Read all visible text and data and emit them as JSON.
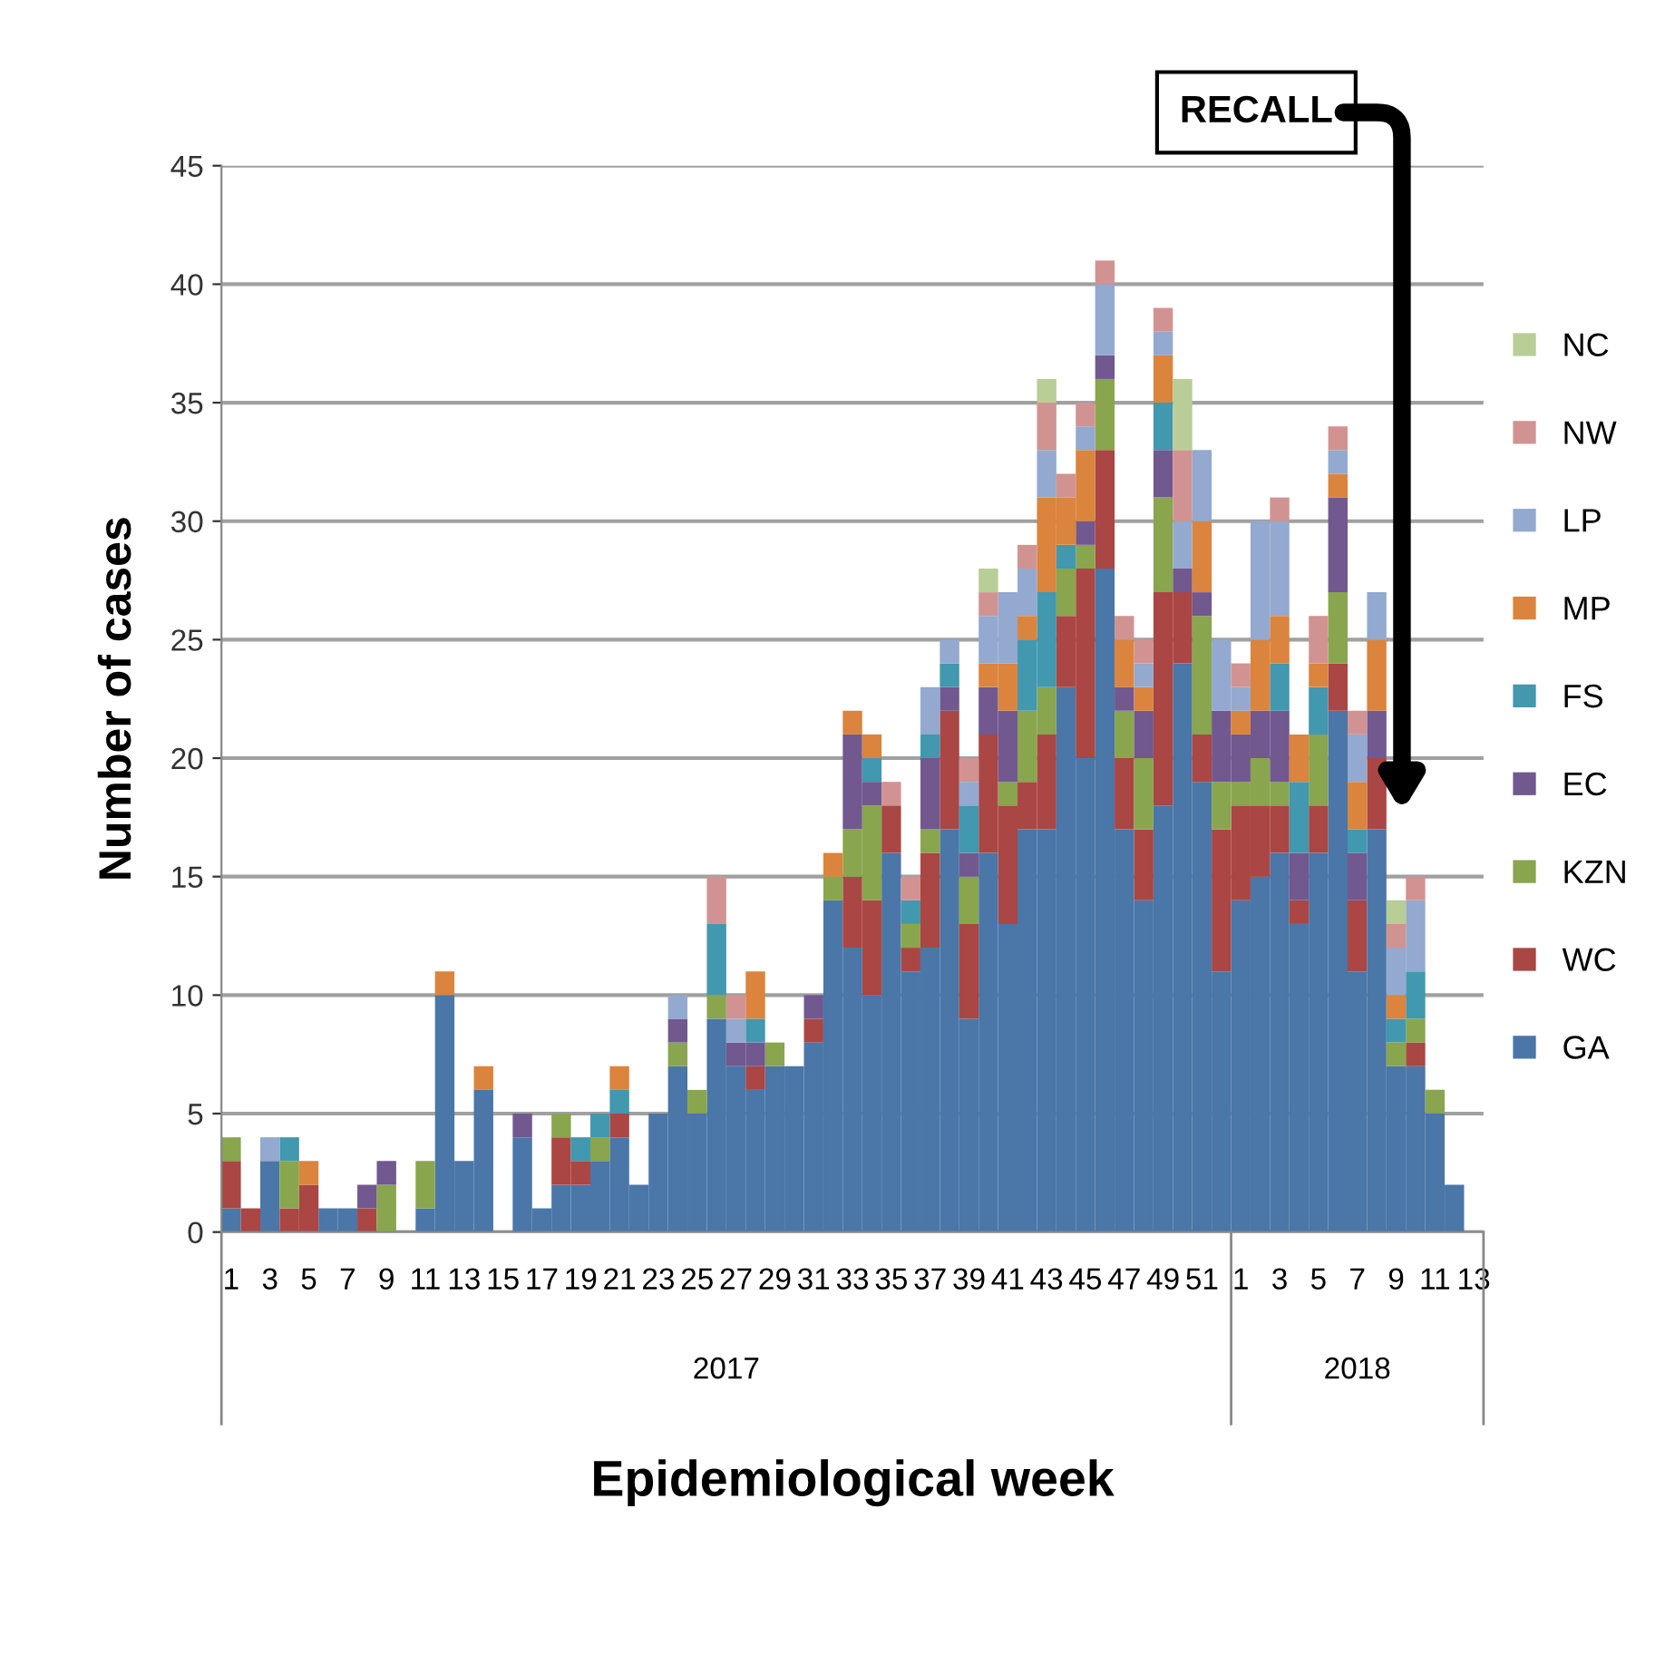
{
  "chart_data": {
    "type": "bar",
    "stacked": true,
    "xlabel": "Epidemiological week",
    "ylabel": "Number of cases",
    "categories": [
      "1",
      null,
      "3",
      null,
      "5",
      null,
      "7",
      null,
      "9",
      null,
      "11",
      null,
      "13",
      null,
      "15",
      null,
      "17",
      null,
      "19",
      null,
      "21",
      null,
      "23",
      null,
      "25",
      null,
      "27",
      null,
      "29",
      null,
      "31",
      null,
      "33",
      null,
      "35",
      null,
      "37",
      null,
      "39",
      null,
      "41",
      null,
      "43",
      null,
      "45",
      null,
      "47",
      null,
      "49",
      null,
      "51",
      null,
      "1",
      null,
      "3",
      null,
      "5",
      null,
      "7",
      null,
      "9",
      null,
      "11",
      null,
      "13"
    ],
    "annotations": [
      "RECALL",
      "2017",
      "2018"
    ],
    "ylim": [
      0,
      45
    ],
    "yticks": [
      0,
      5,
      10,
      15,
      20,
      25,
      30,
      35,
      40,
      45
    ],
    "grid": "y",
    "legend": "right",
    "series": [
      {
        "name": "GA",
        "color": "#4a76a8",
        "values": [
          1,
          0,
          3,
          0,
          0,
          1,
          1,
          0,
          0,
          0,
          1,
          10,
          3,
          6,
          0,
          4,
          1,
          2,
          2,
          3,
          4,
          2,
          5,
          7,
          5,
          9,
          7,
          6,
          7,
          7,
          8,
          14,
          12,
          10,
          16,
          11,
          12,
          17,
          9,
          16,
          13,
          17,
          17,
          23,
          20,
          28,
          17,
          14,
          18,
          24,
          19,
          11,
          14,
          15,
          16,
          13,
          16,
          22,
          11,
          17,
          7,
          7,
          5,
          2,
          0
        ]
      },
      {
        "name": "WC",
        "color": "#aa4643",
        "values": [
          2,
          1,
          0,
          1,
          2,
          0,
          0,
          1,
          0,
          0,
          0,
          0,
          0,
          0,
          0,
          0,
          0,
          2,
          1,
          0,
          1,
          0,
          0,
          0,
          0,
          0,
          0,
          1,
          0,
          0,
          1,
          0,
          3,
          4,
          2,
          1,
          4,
          5,
          4,
          5,
          5,
          2,
          4,
          3,
          8,
          5,
          3,
          3,
          9,
          3,
          2,
          6,
          4,
          3,
          2,
          1,
          2,
          2,
          3,
          3,
          0,
          1,
          0,
          0,
          0
        ]
      },
      {
        "name": "KZN",
        "color": "#89a54e",
        "values": [
          1,
          0,
          0,
          2,
          0,
          0,
          0,
          0,
          2,
          0,
          2,
          0,
          0,
          0,
          0,
          0,
          0,
          1,
          0,
          1,
          0,
          0,
          0,
          1,
          1,
          1,
          0,
          0,
          1,
          0,
          0,
          1,
          2,
          4,
          0,
          1,
          1,
          0,
          2,
          0,
          1,
          3,
          2,
          2,
          1,
          3,
          2,
          3,
          4,
          0,
          5,
          2,
          1,
          2,
          1,
          0,
          3,
          3,
          0,
          0,
          1,
          1,
          1,
          0,
          0
        ]
      },
      {
        "name": "EC",
        "color": "#71588f",
        "values": [
          0,
          0,
          0,
          0,
          0,
          0,
          0,
          1,
          1,
          0,
          0,
          0,
          0,
          0,
          0,
          1,
          0,
          0,
          0,
          0,
          0,
          0,
          0,
          1,
          0,
          0,
          1,
          1,
          0,
          0,
          1,
          0,
          4,
          1,
          0,
          0,
          3,
          1,
          1,
          2,
          3,
          0,
          0,
          0,
          1,
          1,
          1,
          2,
          2,
          1,
          1,
          3,
          2,
          2,
          3,
          2,
          0,
          4,
          2,
          2,
          0,
          0,
          0,
          0,
          0
        ]
      },
      {
        "name": "FS",
        "color": "#4198af",
        "values": [
          0,
          0,
          0,
          1,
          0,
          0,
          0,
          0,
          0,
          0,
          0,
          0,
          0,
          0,
          0,
          0,
          0,
          0,
          1,
          1,
          1,
          0,
          0,
          0,
          0,
          3,
          0,
          1,
          0,
          0,
          0,
          0,
          0,
          1,
          0,
          1,
          1,
          1,
          2,
          0,
          0,
          3,
          4,
          1,
          0,
          0,
          0,
          0,
          2,
          0,
          0,
          0,
          0,
          0,
          2,
          3,
          2,
          0,
          1,
          0,
          1,
          2,
          0,
          0,
          0
        ]
      },
      {
        "name": "MP",
        "color": "#db843d",
        "values": [
          0,
          0,
          0,
          0,
          1,
          0,
          0,
          0,
          0,
          0,
          0,
          1,
          0,
          1,
          0,
          0,
          0,
          0,
          0,
          0,
          1,
          0,
          0,
          0,
          0,
          0,
          0,
          2,
          0,
          0,
          0,
          1,
          1,
          1,
          0,
          0,
          0,
          0,
          0,
          1,
          2,
          1,
          4,
          2,
          3,
          0,
          2,
          1,
          2,
          0,
          3,
          0,
          1,
          3,
          2,
          2,
          1,
          1,
          2,
          3,
          1,
          0,
          0,
          0,
          0
        ]
      },
      {
        "name": "LP",
        "color": "#93a9cf",
        "values": [
          0,
          0,
          1,
          0,
          0,
          0,
          0,
          0,
          0,
          0,
          0,
          0,
          0,
          0,
          0,
          0,
          0,
          0,
          0,
          0,
          0,
          0,
          0,
          1,
          0,
          0,
          1,
          0,
          0,
          0,
          0,
          0,
          0,
          0,
          0,
          0,
          2,
          1,
          1,
          2,
          3,
          2,
          2,
          0,
          1,
          3,
          0,
          1,
          1,
          2,
          3,
          3,
          1,
          5,
          4,
          0,
          0,
          1,
          2,
          2,
          2,
          3,
          0,
          0,
          0
        ]
      },
      {
        "name": "NW",
        "color": "#d19392",
        "values": [
          0,
          0,
          0,
          0,
          0,
          0,
          0,
          0,
          0,
          0,
          0,
          0,
          0,
          0,
          0,
          0,
          0,
          0,
          0,
          0,
          0,
          0,
          0,
          0,
          0,
          2,
          1,
          0,
          0,
          0,
          0,
          0,
          0,
          0,
          1,
          1,
          0,
          0,
          1,
          1,
          0,
          1,
          2,
          1,
          1,
          1,
          1,
          1,
          1,
          3,
          0,
          0,
          1,
          0,
          1,
          0,
          2,
          1,
          1,
          0,
          1,
          1,
          0,
          0,
          0
        ]
      },
      {
        "name": "NC",
        "color": "#b9cd96",
        "values": [
          0,
          0,
          0,
          0,
          0,
          0,
          0,
          0,
          0,
          0,
          0,
          0,
          0,
          0,
          0,
          0,
          0,
          0,
          0,
          0,
          0,
          0,
          0,
          0,
          0,
          0,
          0,
          0,
          0,
          0,
          0,
          0,
          0,
          0,
          0,
          0,
          0,
          0,
          0,
          1,
          0,
          0,
          1,
          0,
          0,
          0,
          0,
          0,
          0,
          3,
          0,
          0,
          0,
          0,
          0,
          0,
          0,
          0,
          0,
          0,
          1,
          0,
          0,
          0,
          0
        ]
      }
    ]
  }
}
